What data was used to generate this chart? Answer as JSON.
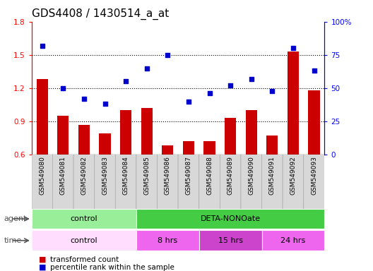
{
  "title": "GDS4408 / 1430514_a_at",
  "samples": [
    "GSM549080",
    "GSM549081",
    "GSM549082",
    "GSM549083",
    "GSM549084",
    "GSM549085",
    "GSM549086",
    "GSM549087",
    "GSM549088",
    "GSM549089",
    "GSM549090",
    "GSM549091",
    "GSM549092",
    "GSM549093"
  ],
  "bar_values": [
    1.28,
    0.95,
    0.87,
    0.79,
    1.0,
    1.02,
    0.68,
    0.72,
    0.72,
    0.93,
    1.0,
    0.77,
    1.53,
    1.18
  ],
  "scatter_values": [
    82,
    50,
    42,
    38,
    55,
    65,
    75,
    40,
    46,
    52,
    57,
    48,
    80,
    63
  ],
  "bar_color": "#cc0000",
  "scatter_color": "#0000cc",
  "ylim_left": [
    0.6,
    1.8
  ],
  "ylim_right": [
    0,
    100
  ],
  "yticks_left": [
    0.6,
    0.9,
    1.2,
    1.5,
    1.8
  ],
  "ytick_labels_left": [
    "0.6",
    "0.9",
    "1.2",
    "1.5",
    "1.8"
  ],
  "yticks_right": [
    0,
    25,
    50,
    75,
    100
  ],
  "ytick_labels_right": [
    "0",
    "25",
    "50",
    "75",
    "100%"
  ],
  "grid_values": [
    0.9,
    1.2,
    1.5
  ],
  "agent_groups": [
    {
      "label": "control",
      "start": 0,
      "end": 5,
      "color": "#99ee99"
    },
    {
      "label": "DETA-NONOate",
      "start": 5,
      "end": 14,
      "color": "#44cc44"
    }
  ],
  "time_groups": [
    {
      "label": "control",
      "start": 0,
      "end": 5,
      "color": "#ffddff"
    },
    {
      "label": "8 hrs",
      "start": 5,
      "end": 8,
      "color": "#ee66ee"
    },
    {
      "label": "15 hrs",
      "start": 8,
      "end": 11,
      "color": "#cc44cc"
    },
    {
      "label": "24 hrs",
      "start": 11,
      "end": 14,
      "color": "#ee66ee"
    }
  ],
  "legend_items": [
    {
      "color": "#cc0000",
      "label": "transformed count"
    },
    {
      "color": "#0000cc",
      "label": "percentile rank within the sample"
    }
  ],
  "background_color": "#ffffff",
  "title_fontsize": 11,
  "tick_fontsize": 7.5,
  "sample_fontsize": 6.5,
  "ann_fontsize": 8
}
